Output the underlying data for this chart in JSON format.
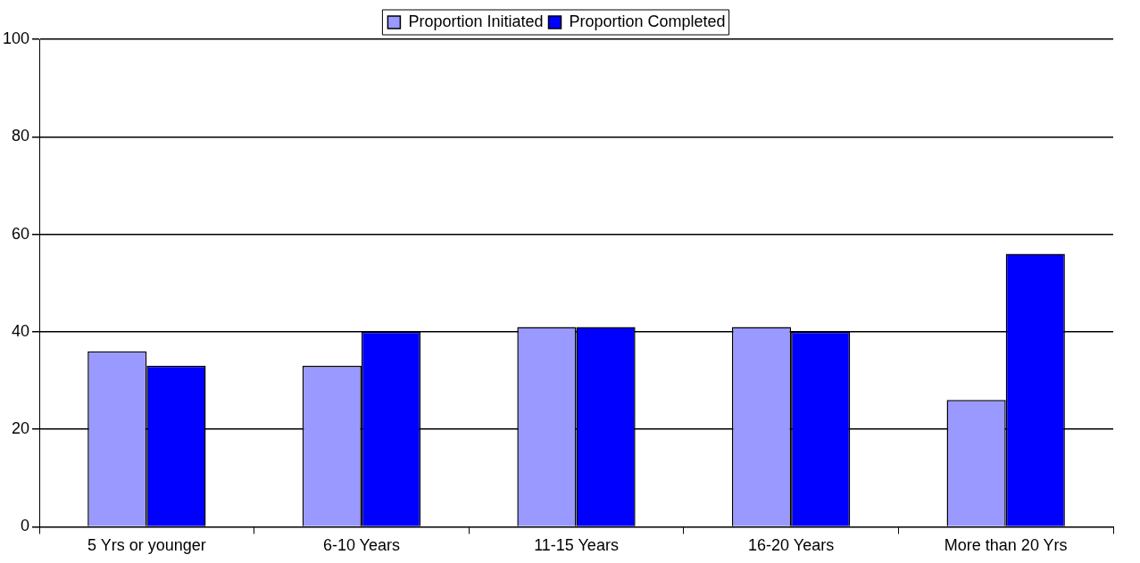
{
  "chart_data": {
    "type": "bar",
    "categories": [
      "5 Yrs or younger",
      "6-10 Years",
      "11-15 Years",
      "16-20 Years",
      "More than 20 Yrs"
    ],
    "series": [
      {
        "name": "Proportion Initiated",
        "color": "#9999ff",
        "values": [
          36,
          33,
          41,
          41,
          26
        ]
      },
      {
        "name": "Proportion Completed",
        "color": "#0000ff",
        "values": [
          33,
          40,
          41,
          40,
          56
        ]
      }
    ],
    "ylim": [
      0,
      100
    ],
    "yticks": [
      0,
      20,
      40,
      60,
      80,
      100
    ],
    "grid": "y",
    "legend": "top"
  }
}
